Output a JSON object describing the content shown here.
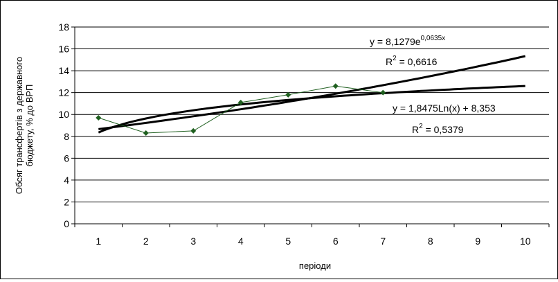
{
  "chart_data": {
    "type": "line",
    "title": "",
    "xlabel": "періоди",
    "ylabel": "Обсяг трансфертів з державного бюджету, % до ВРП",
    "x": [
      1,
      2,
      3,
      4,
      5,
      6,
      7,
      8,
      9,
      10
    ],
    "xlim": [
      0.5,
      10.5
    ],
    "ylim": [
      0,
      18
    ],
    "y_ticks": [
      0,
      2,
      4,
      6,
      8,
      10,
      12,
      14,
      16,
      18
    ],
    "grid": "horizontal",
    "legend": "none",
    "series": [
      {
        "name": "",
        "kind": "data",
        "color": "#1f5f1f",
        "marker": "diamond",
        "x": [
          1,
          2,
          3,
          4,
          5,
          6,
          7
        ],
        "values": [
          9.7,
          8.3,
          8.5,
          11.1,
          11.8,
          12.6,
          12.0
        ]
      },
      {
        "name": "",
        "kind": "trend-exponential",
        "color": "#000000",
        "a": 8.1279,
        "b": 0.0635,
        "x_range": [
          1,
          10
        ]
      },
      {
        "name": "",
        "kind": "trend-logarithmic",
        "color": "#000000",
        "a": 1.8475,
        "b": 8.353,
        "x_range": [
          1,
          10
        ]
      }
    ],
    "annotations": [
      {
        "id": "eq-exp",
        "eq_main": "y = 8,1279e",
        "eq_sup": "0,0635x",
        "r2_base": "R",
        "r2_sup": "2",
        "r2_value": " = 0,6616"
      },
      {
        "id": "eq-log",
        "eq": "y = 1,8475Ln(x) + 8,353",
        "r2_base": "R",
        "r2_sup": "2",
        "r2_value": " = 0,5379"
      }
    ]
  }
}
